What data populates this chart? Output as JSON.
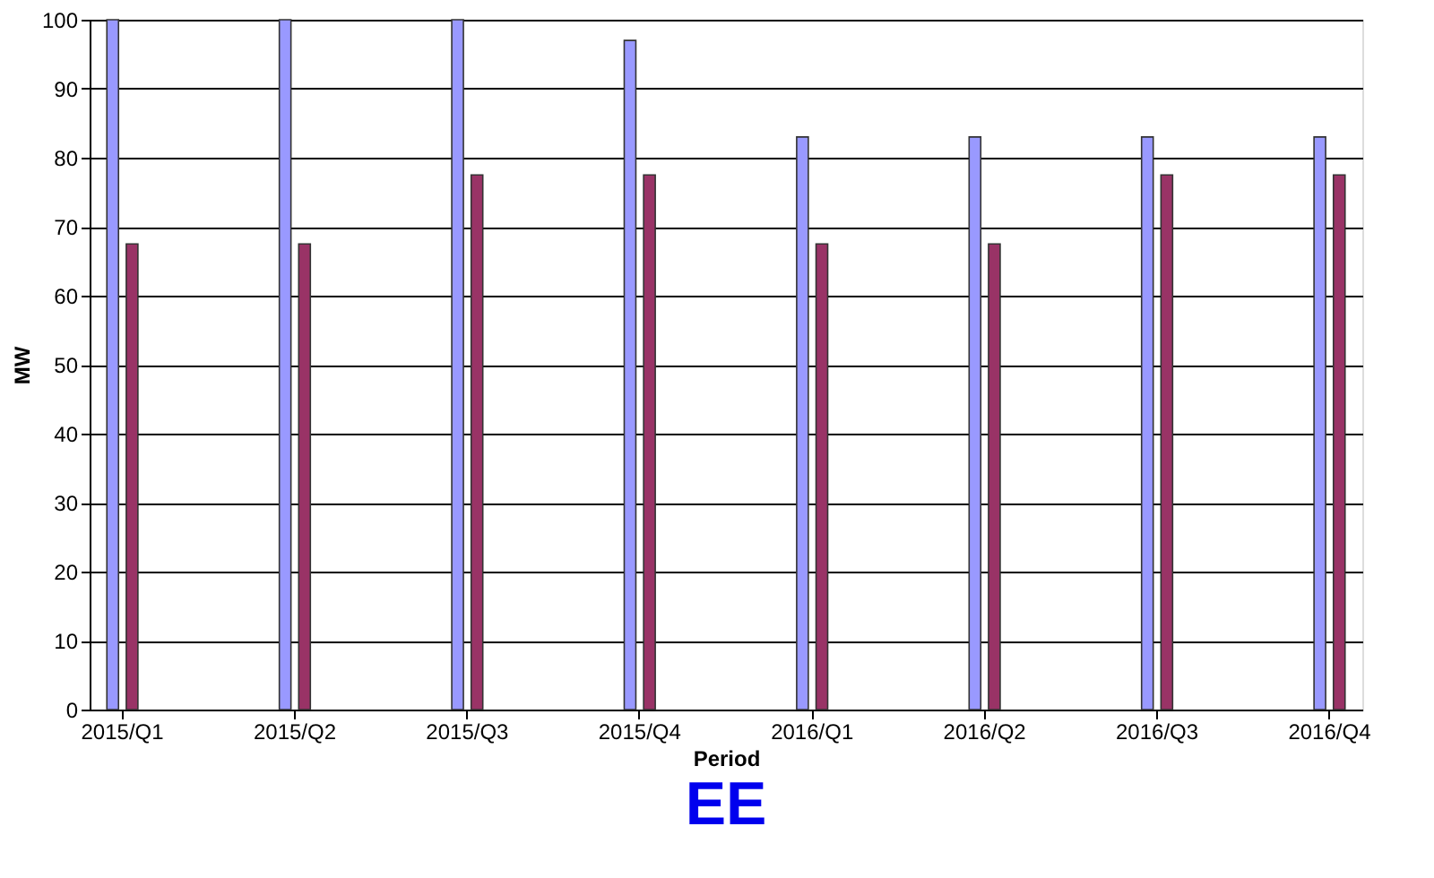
{
  "chart_data": {
    "type": "bar",
    "title": "EE",
    "xlabel": "Period",
    "ylabel": "MW",
    "categories": [
      "2015/Q1",
      "2015/Q2",
      "2015/Q3",
      "2015/Q4",
      "2016/Q1",
      "2016/Q2",
      "2016/Q3",
      "2016/Q4"
    ],
    "series": [
      {
        "color": "#9999ff",
        "values": [
          100,
          100,
          100,
          97,
          83,
          83,
          83,
          83
        ]
      },
      {
        "color": "#993366",
        "values": [
          67.5,
          67.5,
          77.5,
          77.5,
          67.5,
          67.5,
          77.5,
          77.5
        ]
      }
    ],
    "ylim": [
      0,
      100
    ],
    "yticks": [
      0,
      10,
      20,
      30,
      40,
      50,
      60,
      70,
      80,
      90,
      100
    ],
    "grid": "y",
    "legend": false
  }
}
